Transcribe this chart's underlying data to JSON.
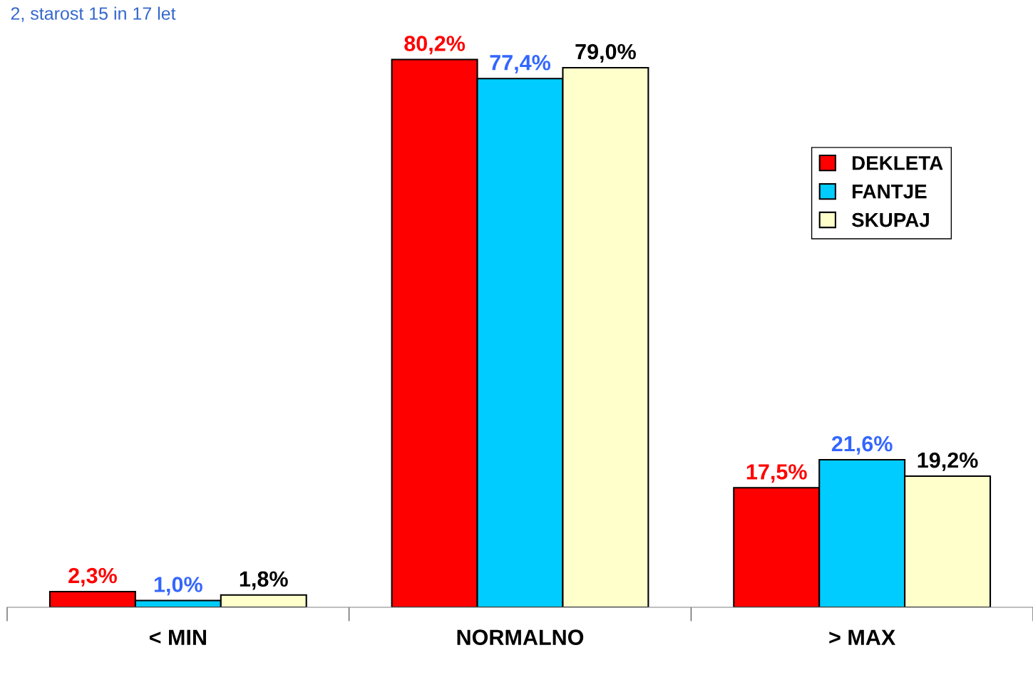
{
  "chart_data": {
    "type": "bar",
    "title": "2, starost 15 in 17 let",
    "categories": [
      "< MIN",
      "NORMALNO",
      "> MAX"
    ],
    "series": [
      {
        "name": "DEKLETA",
        "color": "#ff0000",
        "values": [
          2.3,
          80.2,
          17.5
        ],
        "value_labels": [
          "2,3%",
          "80,2%",
          "17,5%"
        ]
      },
      {
        "name": "FANTJE",
        "color": "#00ccff",
        "values": [
          1.0,
          77.4,
          21.6
        ],
        "value_labels": [
          "1,0%",
          "77,4%",
          "21,6%"
        ]
      },
      {
        "name": "SKUPAJ",
        "color": "#ffffcc",
        "values": [
          1.8,
          79.0,
          19.2
        ],
        "value_labels": [
          "1,8%",
          "79,0%",
          "19,2%"
        ]
      }
    ],
    "tick_labels": "x",
    "legend": "right",
    "grid": false
  }
}
